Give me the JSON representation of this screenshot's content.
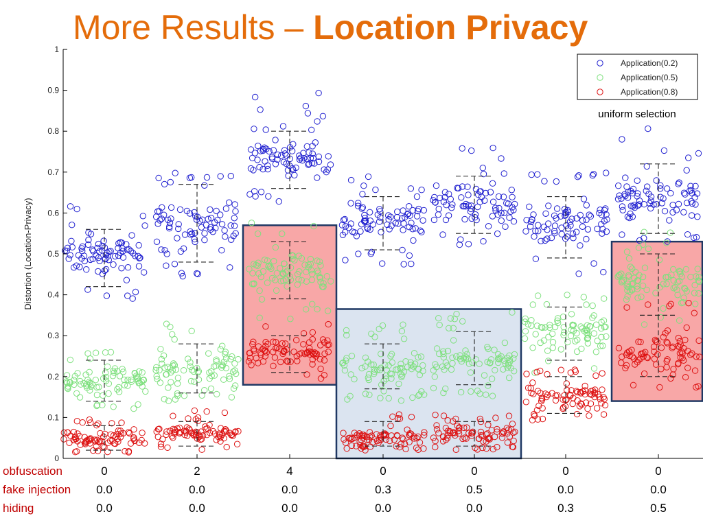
{
  "title": {
    "prefix": "More Results – ",
    "bold": "Location Privacy"
  },
  "colors": {
    "title": "#e46c0a",
    "app02": "#2020d0",
    "app05": "#7ee07e",
    "app08": "#dd1111",
    "highlight_red_fill": "#f8a7a7",
    "highlight_red_border": "#1f3864",
    "highlight_blue_fill": "#dbe4f0",
    "highlight_blue_border": "#1f3864",
    "row_labels": "#c00000"
  },
  "table": {
    "rows": [
      {
        "label": "obfuscation",
        "values": [
          "0",
          "2",
          "4",
          "0",
          "0",
          "0",
          "0"
        ]
      },
      {
        "label": "fake injection",
        "values": [
          "0.0",
          "0.0",
          "0.0",
          "0.3",
          "0.5",
          "0.0",
          "0.0"
        ]
      },
      {
        "label": "hiding",
        "values": [
          "0.0",
          "0.0",
          "0.0",
          "0.0",
          "0.0",
          "0.3",
          "0.5"
        ]
      }
    ]
  },
  "chart_data": {
    "type": "scatter",
    "ylabel": "Distortion (Location-Privacy)",
    "ylim": [
      0,
      1
    ],
    "yticks": [
      "0",
      "0.1",
      "0.2",
      "0.3",
      "0.4",
      "0.5",
      "0.6",
      "0.7",
      "0.8",
      "0.9",
      "1"
    ],
    "grid": false,
    "legend_position": "top-right",
    "annotation": "uniform selection",
    "groups": 7,
    "series": [
      {
        "name": "Application(0.2)",
        "color": "#2020d0",
        "values": [
          {
            "min": 0.42,
            "q1": 0.42,
            "median": 0.5,
            "q3": 0.56,
            "max": 0.56,
            "lo": 0.39,
            "hi": 0.62
          },
          {
            "min": 0.48,
            "q1": 0.48,
            "median": 0.57,
            "q3": 0.67,
            "max": 0.67,
            "lo": 0.44,
            "hi": 0.7
          },
          {
            "min": 0.66,
            "q1": 0.66,
            "median": 0.73,
            "q3": 0.8,
            "max": 0.8,
            "lo": 0.62,
            "hi": 0.9
          },
          {
            "min": 0.51,
            "q1": 0.51,
            "median": 0.58,
            "q3": 0.64,
            "max": 0.64,
            "lo": 0.47,
            "hi": 0.7
          },
          {
            "min": 0.55,
            "q1": 0.55,
            "median": 0.62,
            "q3": 0.69,
            "max": 0.69,
            "lo": 0.52,
            "hi": 0.77
          },
          {
            "min": 0.49,
            "q1": 0.49,
            "median": 0.57,
            "q3": 0.64,
            "max": 0.64,
            "lo": 0.44,
            "hi": 0.7
          },
          {
            "min": 0.55,
            "q1": 0.55,
            "median": 0.64,
            "q3": 0.72,
            "max": 0.72,
            "lo": 0.52,
            "hi": 0.81
          }
        ]
      },
      {
        "name": "Application(0.5)",
        "color": "#7ee07e",
        "values": [
          {
            "min": 0.14,
            "q1": 0.14,
            "median": 0.19,
            "q3": 0.24,
            "max": 0.24,
            "lo": 0.12,
            "hi": 0.26
          },
          {
            "min": 0.16,
            "q1": 0.16,
            "median": 0.22,
            "q3": 0.28,
            "max": 0.28,
            "lo": 0.14,
            "hi": 0.33
          },
          {
            "min": 0.39,
            "q1": 0.39,
            "median": 0.46,
            "q3": 0.53,
            "max": 0.53,
            "lo": 0.34,
            "hi": 0.59
          },
          {
            "min": 0.17,
            "q1": 0.17,
            "median": 0.22,
            "q3": 0.28,
            "max": 0.28,
            "lo": 0.14,
            "hi": 0.33
          },
          {
            "min": 0.18,
            "q1": 0.18,
            "median": 0.24,
            "q3": 0.31,
            "max": 0.31,
            "lo": 0.15,
            "hi": 0.36
          },
          {
            "min": 0.24,
            "q1": 0.24,
            "median": 0.31,
            "q3": 0.37,
            "max": 0.37,
            "lo": 0.2,
            "hi": 0.4
          },
          {
            "min": 0.35,
            "q1": 0.35,
            "median": 0.43,
            "q3": 0.5,
            "max": 0.5,
            "lo": 0.3,
            "hi": 0.56
          }
        ]
      },
      {
        "name": "Application(0.8)",
        "color": "#dd1111",
        "values": [
          {
            "min": 0.02,
            "q1": 0.02,
            "median": 0.05,
            "q3": 0.08,
            "max": 0.08,
            "lo": 0.015,
            "hi": 0.1
          },
          {
            "min": 0.03,
            "q1": 0.03,
            "median": 0.06,
            "q3": 0.09,
            "max": 0.09,
            "lo": 0.02,
            "hi": 0.12
          },
          {
            "min": 0.21,
            "q1": 0.21,
            "median": 0.26,
            "q3": 0.3,
            "max": 0.3,
            "lo": 0.19,
            "hi": 0.33
          },
          {
            "min": 0.03,
            "q1": 0.03,
            "median": 0.05,
            "q3": 0.09,
            "max": 0.09,
            "lo": 0.02,
            "hi": 0.11
          },
          {
            "min": 0.03,
            "q1": 0.03,
            "median": 0.06,
            "q3": 0.09,
            "max": 0.09,
            "lo": 0.02,
            "hi": 0.11
          },
          {
            "min": 0.11,
            "q1": 0.11,
            "median": 0.15,
            "q3": 0.2,
            "max": 0.2,
            "lo": 0.09,
            "hi": 0.22
          },
          {
            "min": 0.2,
            "q1": 0.2,
            "median": 0.26,
            "q3": 0.35,
            "max": 0.35,
            "lo": 0.16,
            "hi": 0.38
          }
        ]
      }
    ],
    "highlights": [
      {
        "groups": [
          2
        ],
        "y_range": [
          0.18,
          0.57
        ],
        "style": "red"
      },
      {
        "groups": [
          3,
          4
        ],
        "y_range": [
          0,
          0.365
        ],
        "style": "blue"
      },
      {
        "groups": [
          6
        ],
        "y_range": [
          0.14,
          0.53
        ],
        "style": "red"
      }
    ]
  }
}
